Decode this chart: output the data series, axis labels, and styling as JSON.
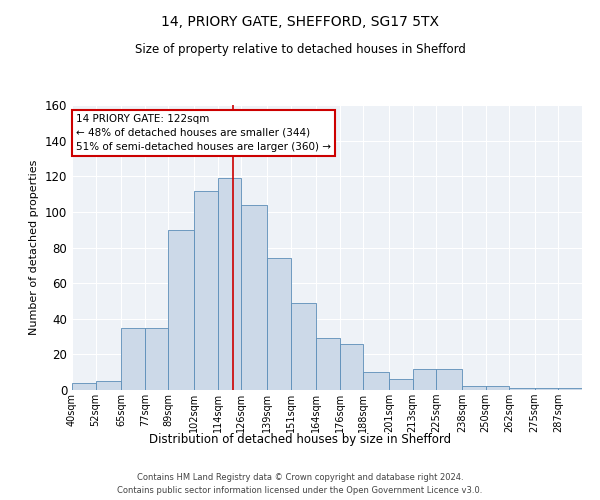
{
  "title_line1": "14, PRIORY GATE, SHEFFORD, SG17 5TX",
  "title_line2": "Size of property relative to detached houses in Shefford",
  "xlabel": "Distribution of detached houses by size in Shefford",
  "ylabel": "Number of detached properties",
  "bin_labels": [
    "40sqm",
    "52sqm",
    "65sqm",
    "77sqm",
    "89sqm",
    "102sqm",
    "114sqm",
    "126sqm",
    "139sqm",
    "151sqm",
    "164sqm",
    "176sqm",
    "188sqm",
    "201sqm",
    "213sqm",
    "225sqm",
    "238sqm",
    "250sqm",
    "262sqm",
    "275sqm",
    "287sqm"
  ],
  "bar_heights": [
    4,
    5,
    35,
    35,
    90,
    112,
    119,
    104,
    74,
    49,
    29,
    26,
    10,
    6,
    12,
    12,
    2,
    2,
    1,
    1,
    1
  ],
  "bar_color": "#ccd9e8",
  "bar_edge_color": "#5b8db8",
  "vline_x_bin": 6,
  "bin_edges": [
    40,
    52,
    65,
    77,
    89,
    102,
    114,
    126,
    139,
    151,
    164,
    176,
    188,
    201,
    213,
    225,
    238,
    250,
    262,
    275,
    287,
    299
  ],
  "annotation_text": "14 PRIORY GATE: 122sqm\n← 48% of detached houses are smaller (344)\n51% of semi-detached houses are larger (360) →",
  "annotation_box_color": "#ffffff",
  "annotation_box_edge_color": "#cc0000",
  "vline_color": "#cc0000",
  "ylim": [
    0,
    160
  ],
  "yticks": [
    0,
    20,
    40,
    60,
    80,
    100,
    120,
    140,
    160
  ],
  "footer": "Contains HM Land Registry data © Crown copyright and database right 2024.\nContains public sector information licensed under the Open Government Licence v3.0.",
  "plot_bg_color": "#eef2f7"
}
